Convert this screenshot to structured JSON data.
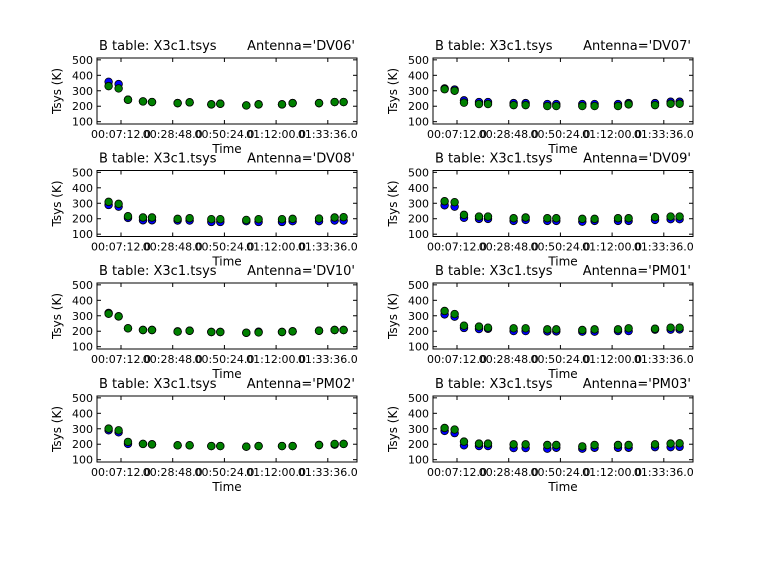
{
  "chart_data": {
    "type": "scatter",
    "shared": {
      "x": [
        "00:02:01",
        "00:06:12",
        "00:10:07",
        "00:16:23",
        "00:20:09",
        "00:30:51",
        "00:35:52",
        "00:44:56",
        "00:48:41",
        "00:59:33",
        "01:04:41",
        "01:14:28",
        "01:18:54",
        "01:29:56",
        "01:36:27",
        "01:40:12"
      ],
      "xlim": [
        "-00:02:50",
        "01:45:48"
      ],
      "xticks": [
        "00:07:12",
        "00:28:48",
        "00:50:24",
        "01:12:00",
        "01:33:36"
      ],
      "xtick_labels": [
        "00:07:12.0",
        "00:28:48.0",
        "00:50:24.0",
        "01:12:00.0",
        "01:33:36.0"
      ],
      "ylim": [
        85,
        512
      ],
      "yticks": [
        100,
        200,
        300,
        400,
        500
      ],
      "xlabel": "Time",
      "ylabel": "Tsys (K)",
      "grid": false,
      "series_colors": [
        "#0000ff",
        "#008000"
      ],
      "marker_edge": "#000000"
    },
    "panels": [
      {
        "title": "B table: X3c1.tsys",
        "antenna": "Antenna='DV06'",
        "series": [
          {
            "values": [
              358,
              343,
              242,
              231,
              227,
              220,
              225,
              212,
              216,
              205,
              212,
              212,
              220,
              220,
              227,
              227
            ]
          },
          {
            "values": [
              330,
              315,
              242,
              231,
              227,
              220,
              225,
              212,
              216,
              205,
              212,
              212,
              220,
              220,
              227,
              227
            ]
          }
        ]
      },
      {
        "title": "B table: X3c1.tsys",
        "antenna": "Antenna='DV07'",
        "series": [
          {
            "values": [
              315,
              308,
              238,
              227,
              227,
              220,
              220,
              214,
              214,
              214,
              214,
              214,
              220,
              220,
              229,
              229
            ]
          },
          {
            "values": [
              310,
              300,
              223,
              214,
              214,
              207,
              207,
              201,
              201,
              201,
              201,
              201,
              212,
              207,
              216,
              216
            ]
          }
        ]
      },
      {
        "title": "B table: X3c1.tsys",
        "antenna": "Antenna='DV08'",
        "series": [
          {
            "values": [
              289,
              278,
              205,
              190,
              190,
              188,
              188,
              179,
              179,
              184,
              179,
              179,
              184,
              184,
              188,
              188
            ]
          },
          {
            "values": [
              309,
              296,
              216,
              208,
              208,
              199,
              203,
              197,
              197,
              192,
              197,
              197,
              199,
              201,
              208,
              210
            ]
          }
        ]
      },
      {
        "title": "B table: X3c1.tsys",
        "antenna": "Antenna='DV09'",
        "series": [
          {
            "values": [
              287,
              278,
              206,
              199,
              199,
              186,
              192,
              186,
              186,
              181,
              186,
              186,
              186,
              192,
              197,
              197
            ]
          },
          {
            "values": [
              313,
              307,
              225,
              214,
              214,
              203,
              208,
              203,
              203,
              199,
              199,
              203,
              203,
              210,
              214,
              214
            ]
          }
        ]
      },
      {
        "title": "B table: X3c1.tsys",
        "antenna": "Antenna='DV10'",
        "series": [
          {
            "values": [
              318,
              296,
              219,
              208,
              208,
              199,
              203,
              195,
              195,
              190,
              197,
              195,
              199,
              203,
              208,
              208
            ]
          },
          {
            "values": [
              313,
              296,
              219,
              208,
              208,
              197,
              203,
              195,
              195,
              190,
              192,
              195,
              199,
              203,
              208,
              208
            ]
          }
        ]
      },
      {
        "title": "B table: X3c1.tsys",
        "antenna": "Antenna='PM01'",
        "series": [
          {
            "values": [
              309,
              294,
              221,
              214,
              216,
              201,
              201,
              199,
              199,
              197,
              197,
              201,
              201,
              210,
              210,
              212
            ]
          },
          {
            "values": [
              331,
              311,
              236,
              230,
              223,
              219,
              219,
              212,
              212,
              208,
              212,
              212,
              219,
              216,
              223,
              223
            ]
          }
        ]
      },
      {
        "title": "B table: X3c1.tsys",
        "antenna": "Antenna='PM02'",
        "series": [
          {
            "values": [
              290,
              277,
              202,
              202,
              199,
              193,
              193,
              188,
              188,
              184,
              188,
              188,
              188,
              195,
              197,
              202
            ]
          },
          {
            "values": [
              301,
              290,
              215,
              202,
              199,
              193,
              193,
              188,
              188,
              184,
              188,
              188,
              188,
              195,
              202,
              202
            ]
          }
        ]
      },
      {
        "title": "B table: X3c1.tsys",
        "antenna": "Antenna='PM03'",
        "series": [
          {
            "values": [
              286,
              272,
              193,
              188,
              188,
              175,
              175,
              171,
              177,
              171,
              177,
              177,
              177,
              181,
              181,
              183
            ]
          },
          {
            "values": [
              305,
              295,
              217,
              204,
              204,
              199,
              199,
              195,
              195,
              186,
              195,
              195,
              195,
              199,
              204,
              206
            ]
          }
        ]
      }
    ]
  }
}
